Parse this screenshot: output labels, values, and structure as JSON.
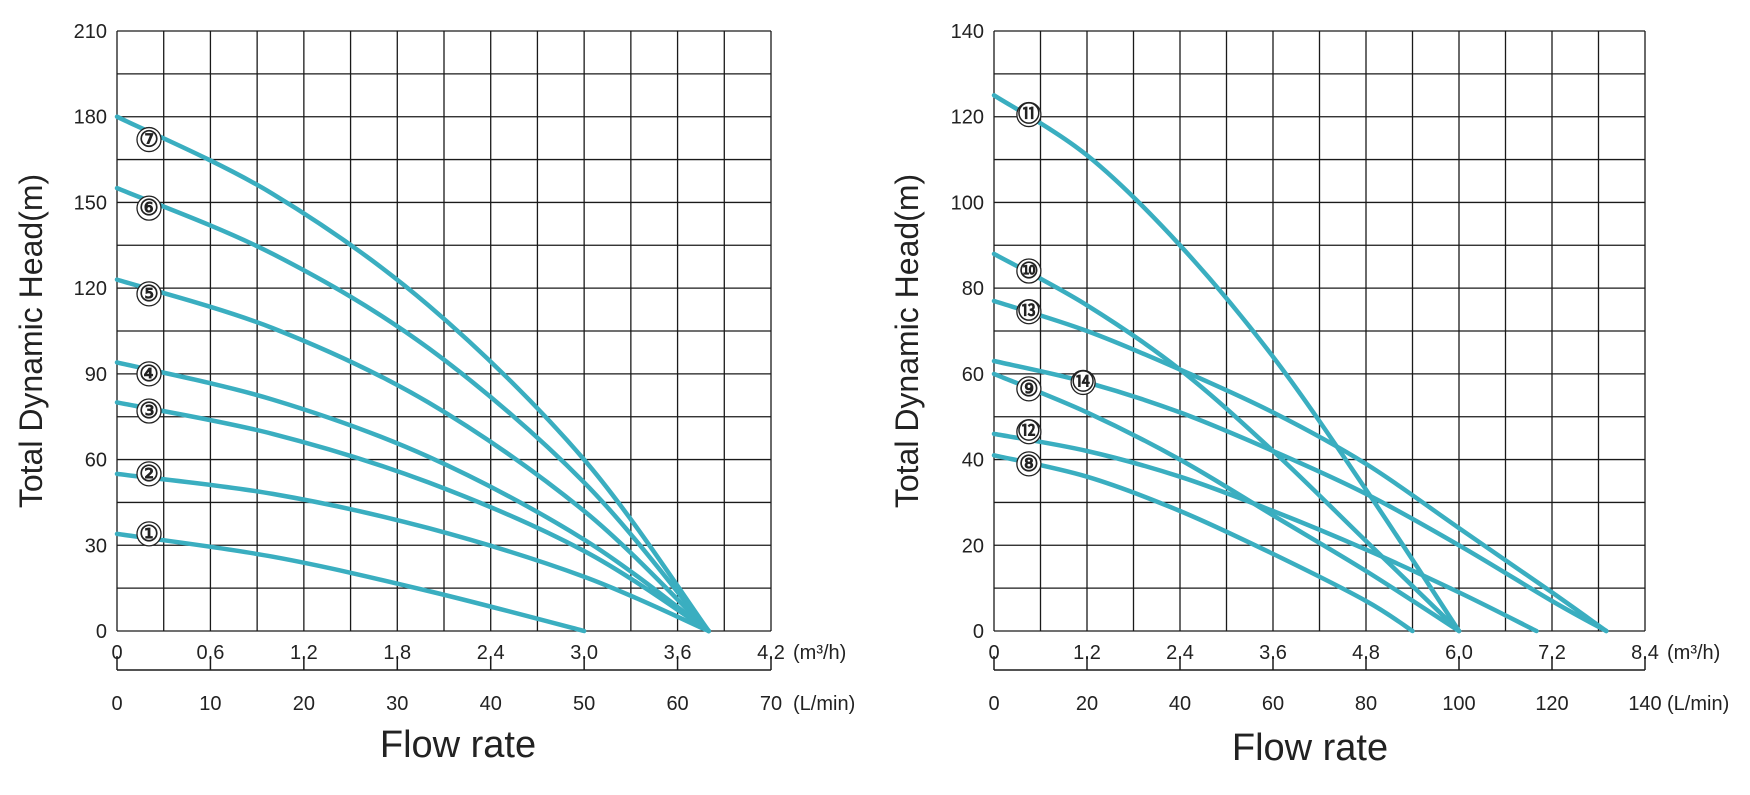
{
  "chart_data": [
    {
      "type": "line",
      "ylabel": "Total Dynamic Head(m)",
      "xlabel": "Flow rate",
      "xlim_m3h": [
        0,
        4.2
      ],
      "ylim": [
        0,
        210
      ],
      "grid": true,
      "curve_color": "#3aaec0",
      "x_ticks_m3h": [
        "0",
        "0.6",
        "1.2",
        "1.8",
        "2.4",
        "3.0",
        "3.6",
        "4.2"
      ],
      "x_unit_m3h": "(m³/h)",
      "x_ticks_lmin": [
        "0",
        "10",
        "20",
        "30",
        "40",
        "50",
        "60",
        "70"
      ],
      "x_unit_lmin": "(L/min)",
      "y_ticks": [
        "0",
        "30",
        "60",
        "90",
        "120",
        "150",
        "180",
        "210"
      ],
      "series": [
        {
          "name": "①",
          "x": [
            0,
            1.0,
            2.0,
            3.0
          ],
          "y": [
            34,
            26,
            14,
            0
          ]
        },
        {
          "name": "②",
          "x": [
            0,
            1.0,
            2.0,
            3.0,
            3.8
          ],
          "y": [
            55,
            48,
            36,
            19,
            0
          ]
        },
        {
          "name": "③",
          "x": [
            0,
            1.0,
            2.0,
            3.0,
            3.8
          ],
          "y": [
            80,
            69,
            52,
            28,
            0
          ]
        },
        {
          "name": "④",
          "x": [
            0,
            1.0,
            2.0,
            3.0,
            3.8
          ],
          "y": [
            94,
            81,
            61,
            32,
            0
          ]
        },
        {
          "name": "⑤",
          "x": [
            0,
            1.0,
            2.0,
            3.0,
            3.8
          ],
          "y": [
            123,
            106,
            80,
            42,
            0
          ]
        },
        {
          "name": "⑥",
          "x": [
            0,
            1.0,
            2.0,
            3.0,
            3.8
          ],
          "y": [
            155,
            132,
            99,
            52,
            0
          ]
        },
        {
          "name": "⑦",
          "x": [
            0,
            1.0,
            2.0,
            3.0,
            3.8
          ],
          "y": [
            180,
            153,
            114,
            60,
            0
          ]
        }
      ]
    },
    {
      "type": "line",
      "ylabel": "Total Dynamic Head(m)",
      "xlabel": "Flow rate",
      "xlim_m3h": [
        0,
        8.4
      ],
      "ylim": [
        0,
        140
      ],
      "grid": true,
      "curve_color": "#3aaec0",
      "x_ticks_m3h": [
        "0",
        "1.2",
        "2.4",
        "3.6",
        "4.8",
        "6.0",
        "7.2",
        "8.4"
      ],
      "x_unit_m3h": "(m³/h)",
      "x_ticks_lmin": [
        "0",
        "20",
        "40",
        "60",
        "80",
        "100",
        "120",
        "140"
      ],
      "x_unit_lmin": "(L/min)",
      "y_ticks": [
        "0",
        "20",
        "40",
        "60",
        "80",
        "100",
        "120",
        "140"
      ],
      "series": [
        {
          "name": "⑧",
          "x": [
            0,
            1.2,
            2.4,
            3.6,
            4.8,
            5.4
          ],
          "y": [
            41,
            36,
            28,
            18,
            7,
            0
          ]
        },
        {
          "name": "⑨",
          "x": [
            0,
            1.2,
            2.4,
            3.6,
            4.8,
            6.0
          ],
          "y": [
            60,
            51,
            40,
            27,
            14,
            0
          ]
        },
        {
          "name": "⑩",
          "x": [
            0,
            1.2,
            2.4,
            3.6,
            4.8,
            6.0
          ],
          "y": [
            88,
            76,
            61,
            42,
            21,
            0
          ]
        },
        {
          "name": "⑪",
          "x": [
            0,
            1.2,
            2.4,
            3.6,
            4.8,
            6.0
          ],
          "y": [
            125,
            111,
            90,
            64,
            33,
            0
          ]
        },
        {
          "name": "⑫",
          "x": [
            0,
            1.2,
            2.4,
            3.6,
            4.8,
            6.0,
            7.0
          ],
          "y": [
            46,
            42,
            36,
            28,
            19,
            9,
            0
          ]
        },
        {
          "name": "⑬",
          "x": [
            0,
            1.2,
            2.4,
            3.6,
            4.8,
            6.0,
            7.2,
            7.9
          ],
          "y": [
            77,
            70,
            61,
            51,
            39,
            24,
            9,
            0
          ]
        },
        {
          "name": "⑭",
          "x": [
            0,
            1.2,
            2.4,
            3.6,
            4.8,
            6.0,
            7.2,
            7.9
          ],
          "y": [
            63,
            58,
            51,
            42,
            32,
            20,
            7,
            0
          ]
        }
      ]
    }
  ]
}
